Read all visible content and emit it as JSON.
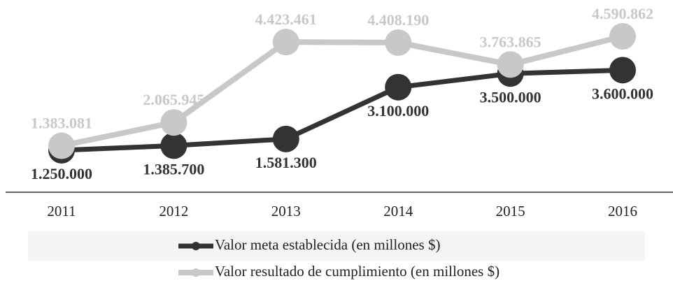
{
  "chart_data": {
    "type": "line",
    "categories": [
      "2011",
      "2012",
      "2013",
      "2014",
      "2015",
      "2016"
    ],
    "series": [
      {
        "name": "Valor meta establecida (en millones $)",
        "color": "#333333",
        "values": [
          1250000,
          1385700,
          1581300,
          3100000,
          3500000,
          3600000
        ],
        "value_labels": [
          "1.250.000",
          "1.385.700",
          "1.581.300",
          "3.100.000",
          "3.500.000",
          "3.600.000"
        ]
      },
      {
        "name": "Valor resultado de cumplimiento (en millones $)",
        "color": "#c8c8c8",
        "values": [
          1383081,
          2065945,
          4423461,
          4408190,
          3763865,
          4590862
        ],
        "value_labels": [
          "1.383.081",
          "2.065.945",
          "4.423.461",
          "4.408.190",
          "3.763.865",
          "4.590.862"
        ]
      }
    ]
  }
}
